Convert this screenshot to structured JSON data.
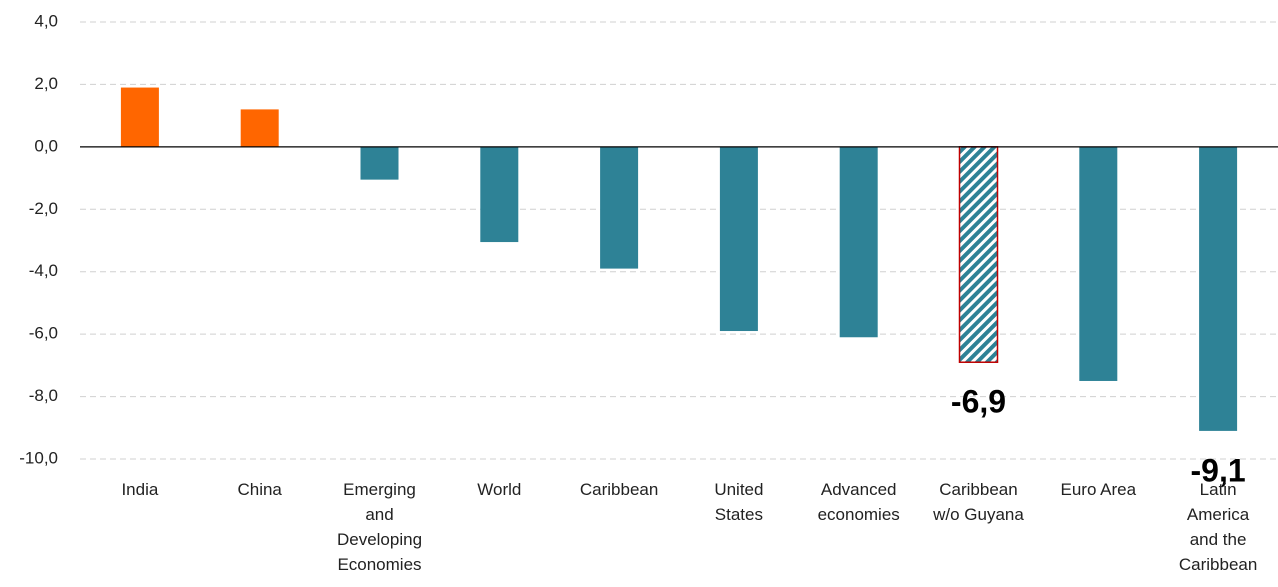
{
  "chart_data": {
    "type": "bar",
    "categories": [
      "India",
      "China",
      "Emerging and Developing Economies",
      "World",
      "Caribbean",
      "United States",
      "Advanced economies",
      "Caribbean w/o Guyana",
      "Euro Area",
      "Latin America and the Caribbean"
    ],
    "values": [
      1.9,
      1.2,
      -1.05,
      -3.05,
      -3.9,
      -5.9,
      -6.1,
      -6.9,
      -7.5,
      -9.1
    ],
    "value_labels": [
      null,
      null,
      null,
      null,
      null,
      null,
      null,
      "-6,9",
      null,
      "-9,1"
    ],
    "colors": [
      "#ff6600",
      "#ff6600",
      "#2e8296",
      "#2e8296",
      "#2e8296",
      "#2e8296",
      "#2e8296",
      "#2e8296",
      "#2e8296",
      "#2e8296"
    ],
    "hatch": [
      false,
      false,
      false,
      false,
      false,
      false,
      false,
      true,
      false,
      false
    ],
    "ylim": [
      -10,
      4
    ],
    "yticks": [
      {
        "value": -10,
        "label": "-10,0"
      },
      {
        "value": -8,
        "label": "-8,0"
      },
      {
        "value": -6,
        "label": "-6,0"
      },
      {
        "value": -4,
        "label": "-4,0"
      },
      {
        "value": -2,
        "label": "-2,0"
      },
      {
        "value": 0,
        "label": "0,0"
      },
      {
        "value": 2,
        "label": "2,0"
      },
      {
        "value": 4,
        "label": "4,0"
      }
    ],
    "grid": true
  }
}
